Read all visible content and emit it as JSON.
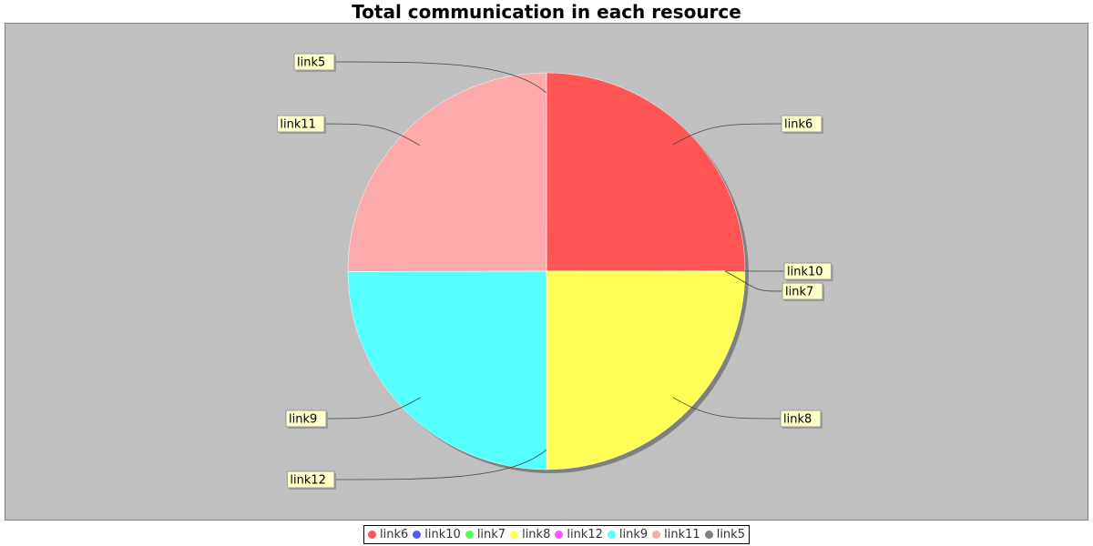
{
  "chart_data": {
    "type": "pie",
    "title": "Total communication in each resource",
    "legend_position": "bottom",
    "slices": [
      {
        "name": "link6",
        "value": 25.0,
        "color": "#ff5555"
      },
      {
        "name": "link10",
        "value": 0.02,
        "color": "#5555ff"
      },
      {
        "name": "link7",
        "value": 0.02,
        "color": "#55ff55"
      },
      {
        "name": "link8",
        "value": 25.0,
        "color": "#ffff55"
      },
      {
        "name": "link12",
        "value": 0.02,
        "color": "#ff55ff"
      },
      {
        "name": "link9",
        "value": 25.0,
        "color": "#55ffff"
      },
      {
        "name": "link11",
        "value": 25.0,
        "color": "#ffaaaa"
      },
      {
        "name": "link5",
        "value": 0.06,
        "color": "#808080"
      }
    ]
  },
  "colors": {
    "plot_background": "#c0c0c0",
    "label_background": "#ffffcc",
    "label_border": "#999999"
  }
}
